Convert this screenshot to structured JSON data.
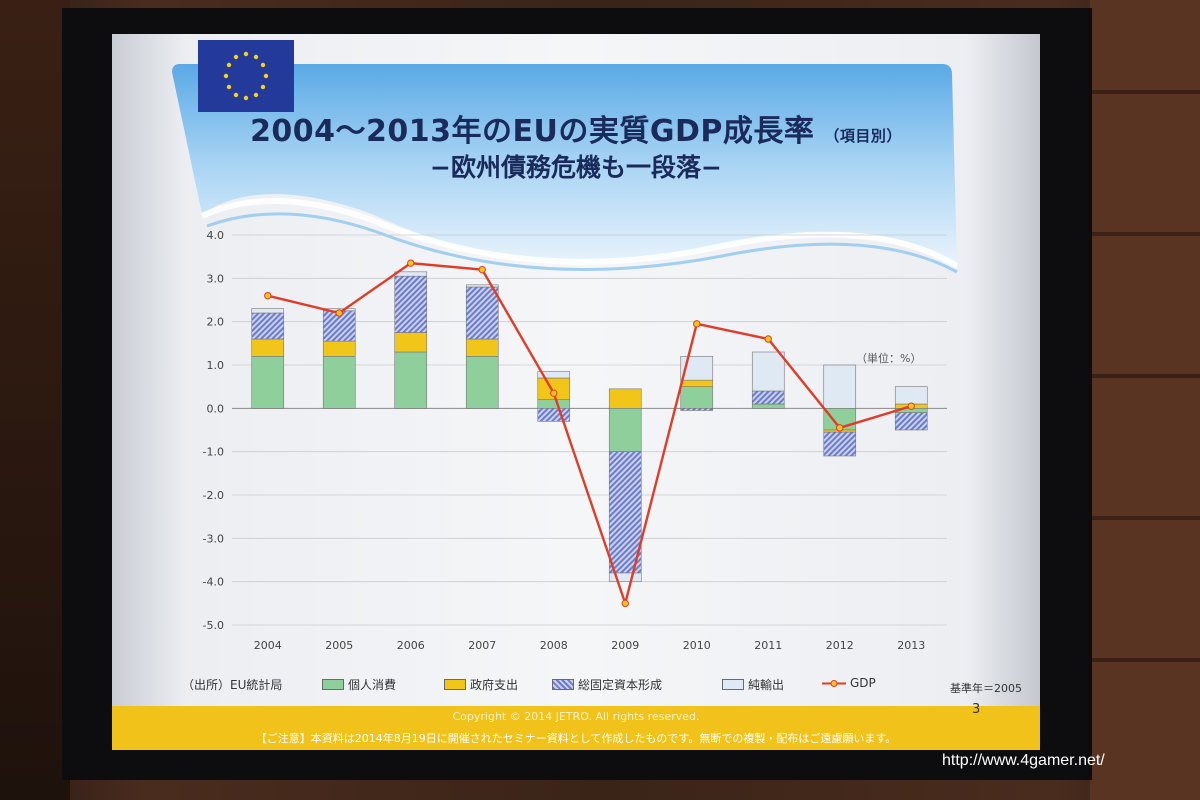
{
  "slide": {
    "title": "2004〜2013年のEUの実質GDP成長率",
    "title_note": "（項目別）",
    "subtitle": "−欧州債務危機も一段落−",
    "unit_label": "（単位：%）",
    "source_label": "（出所）EU統計局",
    "base_year": "基準年＝2005",
    "page_number": "3",
    "copyright": "Copyright © 2014  JETRO. All rights reserved.",
    "notice": "【ご注意】本資料は2014年8月19日に開催されたセミナー資料として作成したものです。無断での複製・配布はご遠慮願います。"
  },
  "watermark": "http://www.4gamer.net/",
  "colors": {
    "personal": "#8fcf9c",
    "government": "#f2c618",
    "investment": "#9aa8de",
    "net_exports": "#dfe9f4",
    "gdp": "#e03c28",
    "flag": "#243a9a"
  },
  "chart_data": {
    "type": "bar",
    "stacked": true,
    "categories": [
      "2004",
      "2005",
      "2006",
      "2007",
      "2008",
      "2009",
      "2010",
      "2011",
      "2012",
      "2013"
    ],
    "ylim": [
      -5.0,
      4.0
    ],
    "yticks": [
      "4.0",
      "3.0",
      "2.0",
      "1.0",
      "0.0",
      "-1.0",
      "-2.0",
      "-3.0",
      "-4.0",
      "-5.0"
    ],
    "grid": true,
    "legend_position": "bottom",
    "series": [
      {
        "name": "個人消費",
        "type": "bar",
        "values": [
          1.2,
          1.2,
          1.3,
          1.2,
          0.2,
          -1.0,
          0.5,
          0.1,
          -0.5,
          -0.1
        ]
      },
      {
        "name": "政府支出",
        "type": "bar",
        "values": [
          0.4,
          0.35,
          0.45,
          0.4,
          0.5,
          0.45,
          0.15,
          0.0,
          -0.05,
          0.1
        ]
      },
      {
        "name": "総固定資本形成",
        "type": "bar",
        "values": [
          0.6,
          0.7,
          1.3,
          1.2,
          -0.3,
          -2.8,
          -0.05,
          0.3,
          -0.55,
          -0.4
        ]
      },
      {
        "name": "純輸出",
        "type": "bar",
        "values": [
          0.1,
          0.05,
          0.1,
          0.05,
          0.15,
          -0.2,
          0.55,
          0.9,
          1.0,
          0.4
        ]
      },
      {
        "name": "GDP",
        "type": "line",
        "values": [
          2.6,
          2.2,
          3.35,
          3.2,
          0.35,
          -4.5,
          1.95,
          1.6,
          -0.45,
          0.05
        ]
      }
    ]
  }
}
